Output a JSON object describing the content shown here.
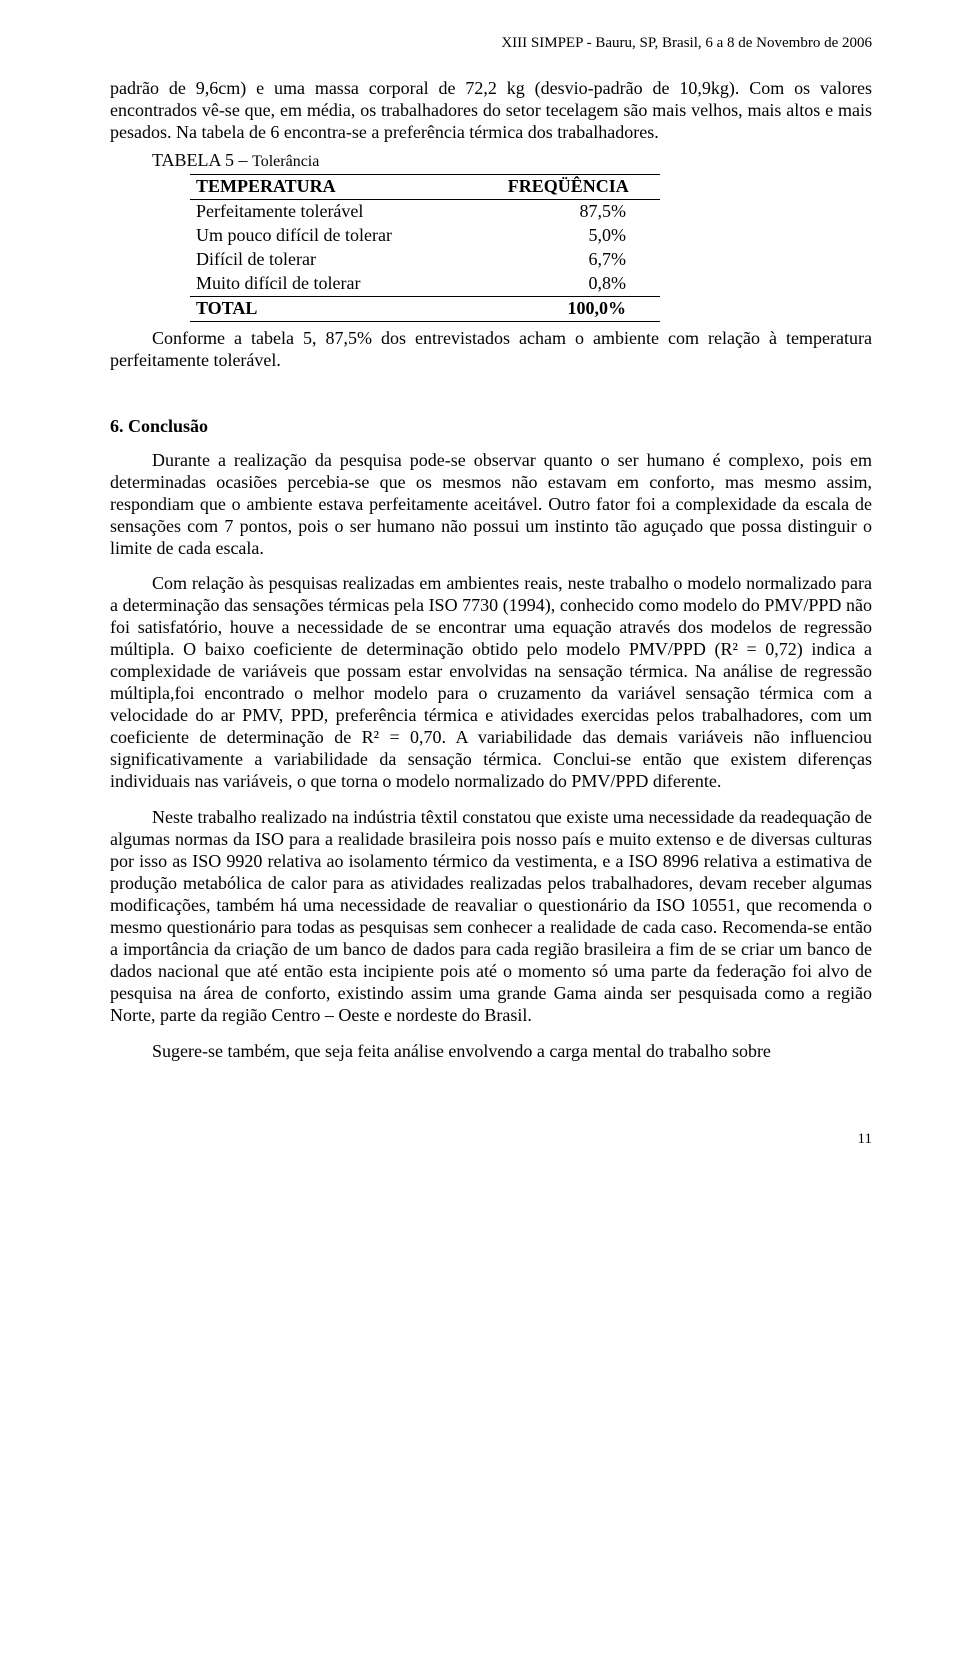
{
  "header": {
    "running": "XIII SIMPEP - Bauru, SP, Brasil, 6 a 8 de Novembro de 2006"
  },
  "paragraphs": {
    "intro1": "padrão de 9,6cm)  e uma massa corporal de 72,2 kg (desvio-padrão de 10,9kg). Com os valores encontrados vê-se que, em média, os trabalhadores do setor tecelagem são mais velhos, mais altos e mais pesados. Na tabela de 6 encontra-se a preferência térmica dos trabalhadores.",
    "afterTable": "Conforme a tabela 5, 87,5% dos entrevistados acham o ambiente com relação à temperatura perfeitamente tolerável.",
    "c1": "Durante a realização da pesquisa pode-se observar quanto o ser humano é complexo, pois em determinadas ocasiões percebia-se que os mesmos não estavam em conforto, mas mesmo assim, respondiam que o ambiente estava perfeitamente aceitável. Outro fator foi a complexidade da escala de sensações com 7 pontos, pois o ser humano não possui um instinto tão aguçado que possa distinguir o limite de  cada escala.",
    "c2": "Com relação às pesquisas realizadas em ambientes reais, neste trabalho o modelo normalizado para a determinação das sensações térmicas pela ISO 7730 (1994), conhecido como modelo do PMV/PPD não foi satisfatório, houve a necessidade de se encontrar uma equação através dos modelos de regressão múltipla. O baixo coeficiente de determinação obtido pelo modelo PMV/PPD (R² = 0,72) indica a complexidade de variáveis que possam estar envolvidas na sensação térmica. Na análise de regressão múltipla,foi encontrado o melhor modelo para o cruzamento da variável sensação térmica com a velocidade do ar PMV, PPD, preferência térmica e atividades exercidas pelos trabalhadores, com um coeficiente de determinação de R² = 0,70. A variabilidade das demais variáveis não influenciou significativamente a variabilidade da sensação térmica. Conclui-se então que existem diferenças individuais nas variáveis, o que torna o modelo normalizado do PMV/PPD diferente.",
    "c3": "Neste trabalho realizado na indústria têxtil constatou que existe uma necessidade da readequação de algumas normas da ISO para a realidade brasileira pois nosso país e muito extenso e de diversas culturas por isso as ISO 9920 relativa ao isolamento térmico da vestimenta, e a ISO 8996 relativa a estimativa de produção metabólica de calor para as atividades realizadas pelos trabalhadores, devam receber algumas modificações, também há uma necessidade de reavaliar o questionário da ISO 10551, que recomenda o mesmo questionário para todas as pesquisas sem conhecer a realidade de cada caso. Recomenda-se então a  importância da  criação de um banco de dados para cada região  brasileira a fim de se criar um banco de dados nacional que até então esta incipiente pois até o momento só uma parte da federação  foi alvo de pesquisa na área de conforto, existindo assim uma grande Gama ainda ser pesquisada como a região Norte, parte da região Centro – Oeste e nordeste do Brasil.",
    "c4": "Sugere-se também, que seja feita análise envolvendo a carga mental do trabalho sobre"
  },
  "table5": {
    "caption_main": "TABELA 5 – ",
    "caption_sub": "Tolerância",
    "col1": "TEMPERATURA",
    "col2": "FREQÜÊNCIA",
    "rows": [
      {
        "label": "Perfeitamente tolerável",
        "value": "87,5%"
      },
      {
        "label": "Um pouco difícil de tolerar",
        "value": "5,0%"
      },
      {
        "label": "Difícil de tolerar",
        "value": "6,7%"
      },
      {
        "label": "Muito difícil de tolerar",
        "value": "0,8%"
      }
    ],
    "total_label": "TOTAL",
    "total_value": "100,0%"
  },
  "section": {
    "conclusion_heading": "6. Conclusão"
  },
  "footer": {
    "page_number": "11"
  }
}
